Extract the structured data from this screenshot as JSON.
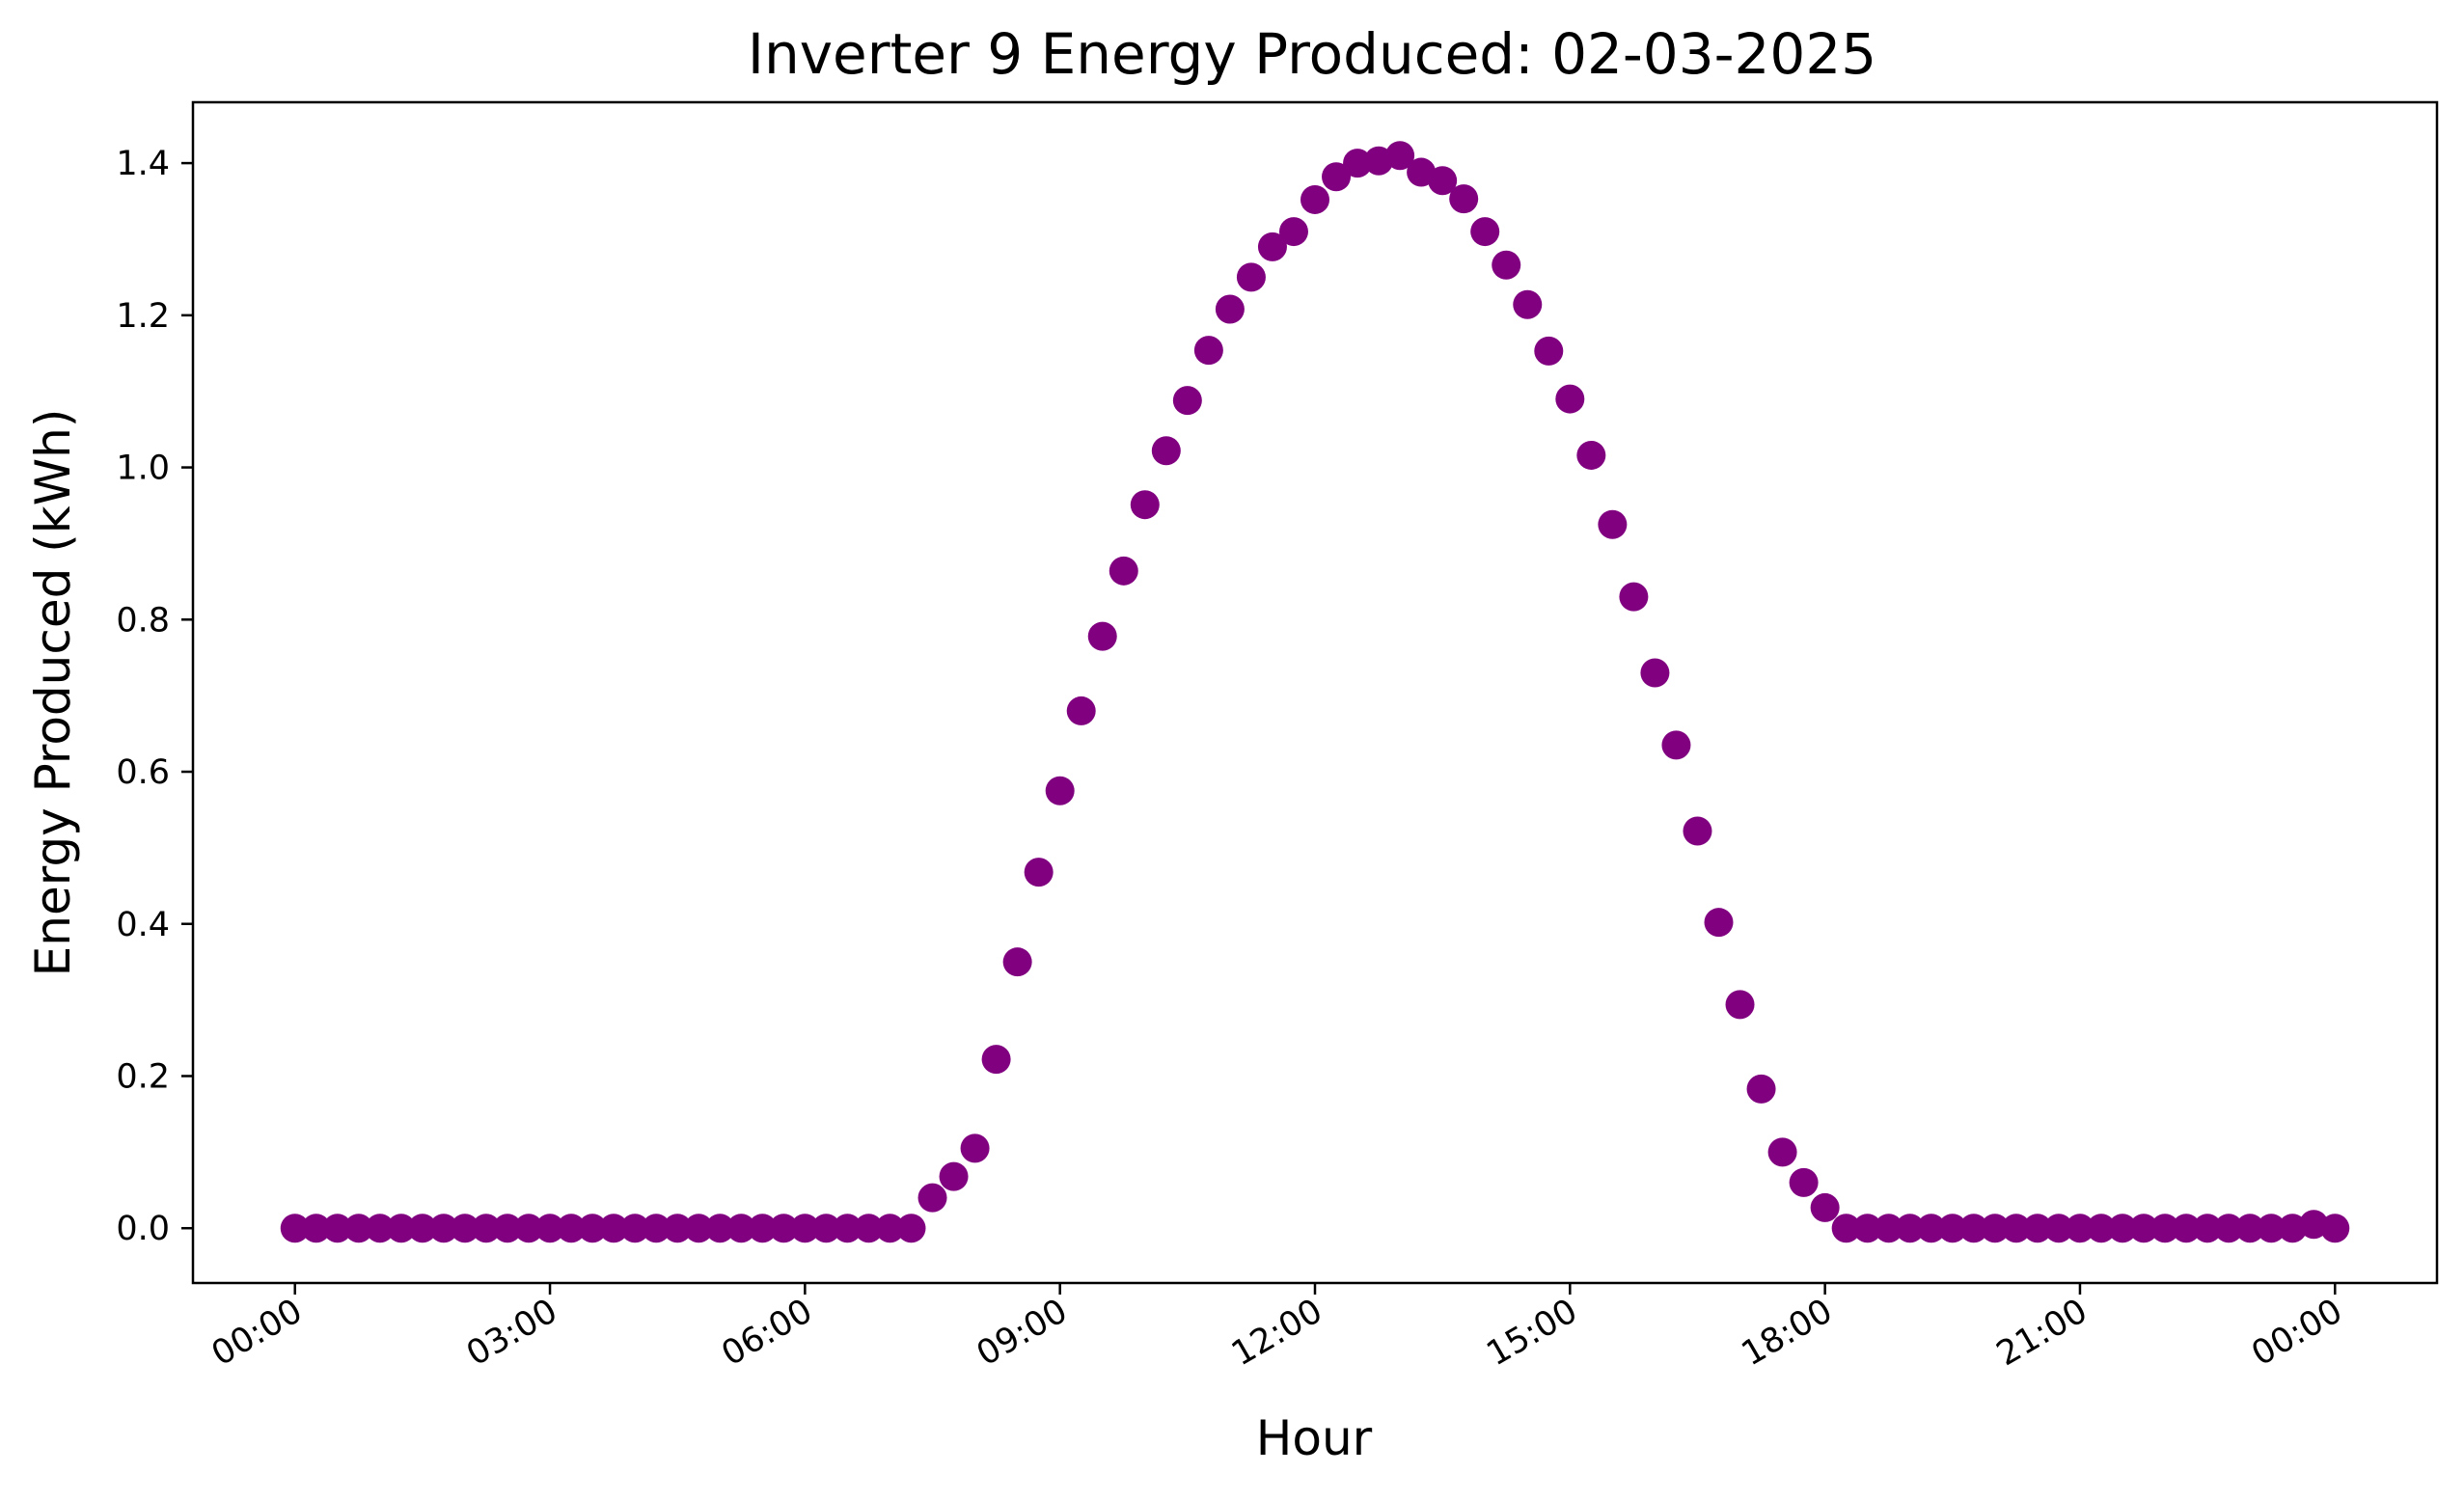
{
  "chart_data": {
    "type": "scatter",
    "title": "Inverter 9 Energy Produced:  02-03-2025",
    "xlabel": "Hour",
    "ylabel": "Energy Produced (kWh)",
    "x_tick_labels": [
      "00:00",
      "03:00",
      "06:00",
      "09:00",
      "12:00",
      "15:00",
      "18:00",
      "21:00",
      "00:00"
    ],
    "x_ticks_hours": [
      0,
      3,
      6,
      9,
      12,
      15,
      18,
      21,
      24
    ],
    "xlim_hours": [
      -1.2,
      25.2
    ],
    "y_tick_labels": [
      "0.0",
      "0.2",
      "0.4",
      "0.6",
      "0.8",
      "1.0",
      "1.2",
      "1.4"
    ],
    "y_ticks": [
      0.0,
      0.2,
      0.4,
      0.6,
      0.8,
      1.0,
      1.2,
      1.4
    ],
    "ylim": [
      -0.072,
      1.48
    ],
    "grid": false,
    "marker_color": "#800080",
    "series": [
      {
        "x": [
          "00:00",
          "00:15",
          "00:30",
          "00:45",
          "01:00",
          "01:15",
          "01:30",
          "01:45",
          "02:00",
          "02:15",
          "02:30",
          "02:45",
          "03:00",
          "03:15",
          "03:30",
          "03:45",
          "04:00",
          "04:15",
          "04:30",
          "04:45",
          "05:00",
          "05:15",
          "05:30",
          "05:45",
          "06:00",
          "06:15",
          "06:30",
          "06:45",
          "07:00",
          "07:15",
          "07:30",
          "07:45",
          "08:00",
          "08:15",
          "08:30",
          "08:45",
          "09:00",
          "09:15",
          "09:30",
          "09:45",
          "10:00",
          "10:15",
          "10:30",
          "10:45",
          "11:00",
          "11:15",
          "11:30",
          "11:45",
          "12:00",
          "12:15",
          "12:30",
          "12:45",
          "13:00",
          "13:15",
          "13:30",
          "13:45",
          "14:00",
          "14:15",
          "14:30",
          "14:45",
          "15:00",
          "15:15",
          "15:30",
          "15:45",
          "16:00",
          "16:15",
          "16:30",
          "16:45",
          "17:00",
          "17:15",
          "17:30",
          "17:45",
          "18:00",
          "18:15",
          "18:30",
          "18:45",
          "19:00",
          "19:15",
          "19:30",
          "19:45",
          "20:00",
          "20:15",
          "20:30",
          "20:45",
          "21:00",
          "21:15",
          "21:30",
          "21:45",
          "22:00",
          "22:15",
          "22:30",
          "22:45",
          "23:00",
          "23:15",
          "23:30",
          "23:45",
          "00:00"
        ],
        "y": [
          0,
          0,
          0,
          0,
          0,
          0,
          0,
          0,
          0,
          0,
          0,
          0,
          0,
          0,
          0,
          0,
          0,
          0,
          0,
          0,
          0,
          0,
          0,
          0,
          0,
          0,
          0,
          0,
          0,
          0,
          0.04,
          0.068,
          0.105,
          0.222,
          0.35,
          0.468,
          0.575,
          0.68,
          0.778,
          0.864,
          0.951,
          1.022,
          1.088,
          1.154,
          1.208,
          1.25,
          1.29,
          1.31,
          1.352,
          1.382,
          1.4,
          1.403,
          1.41,
          1.388,
          1.377,
          1.353,
          1.31,
          1.266,
          1.214,
          1.153,
          1.09,
          1.016,
          0.925,
          0.83,
          0.73,
          0.635,
          0.522,
          0.402,
          0.294,
          0.183,
          0.1,
          0.06,
          0.027,
          0,
          0,
          0,
          0,
          0,
          0,
          0,
          0,
          0,
          0,
          0,
          0,
          0,
          0,
          0,
          0,
          0,
          0,
          0,
          0,
          0,
          0,
          0.005,
          0
        ]
      }
    ]
  }
}
